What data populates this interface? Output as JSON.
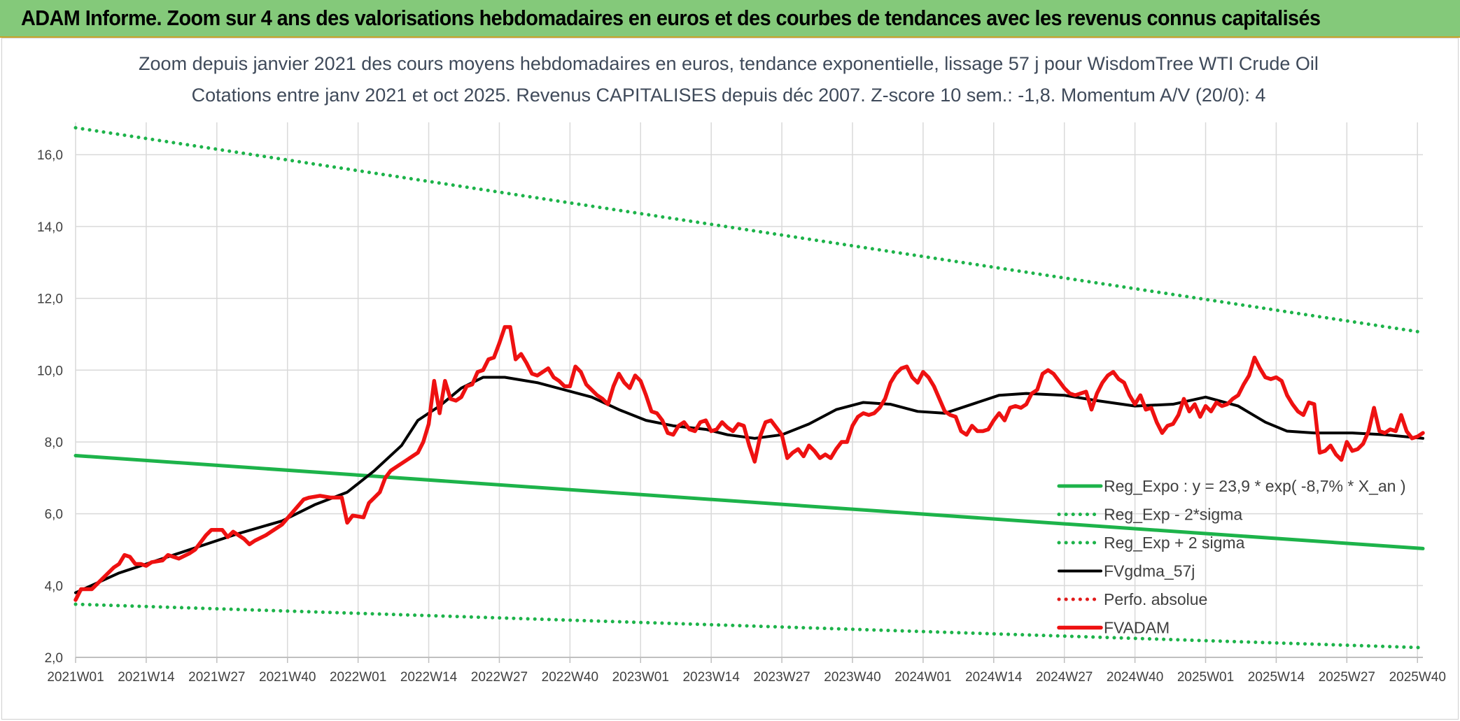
{
  "banner": {
    "title": "ADAM Informe. Zoom sur 4 ans des valorisations hebdomadaires en euros et des courbes de tendances avec les revenus connus capitalisés"
  },
  "chart_data": {
    "type": "line",
    "title": "Zoom depuis janvier 2021 des cours moyens hebdomadaires en euros, tendance exponentielle, lissage 57 j pour WisdomTree WTI Crude Oil",
    "subtitle": "Cotations entre janv 2021 et oct 2025. Revenus CAPITALISES depuis déc 2007. Z-score 10 sem.: -1,8. Momentum A/V (20/0): 4",
    "ylim": [
      2.0,
      16.9
    ],
    "yticks": [
      "2,0",
      "4,0",
      "6,0",
      "8,0",
      "10,0",
      "12,0",
      "14,0",
      "16,0"
    ],
    "ytick_values": [
      2,
      4,
      6,
      8,
      10,
      12,
      14,
      16
    ],
    "xticks": [
      "2021W01",
      "2021W14",
      "2021W27",
      "2021W40",
      "2022W01",
      "2022W14",
      "2022W27",
      "2022W40",
      "2023W01",
      "2023W14",
      "2023W27",
      "2023W40",
      "2024W01",
      "2024W14",
      "2024W27",
      "2024W40",
      "2025W01",
      "2025W14",
      "2025W27",
      "2025W40"
    ],
    "xtick_positions": [
      0,
      13,
      26,
      39,
      52,
      65,
      78,
      91,
      104,
      117,
      130,
      143,
      156,
      169,
      182,
      195,
      208,
      221,
      234,
      247
    ],
    "x_range": [
      0,
      248
    ],
    "grid": true,
    "legend_position": "right",
    "series": [
      {
        "name": "Reg_Expo : y = 23,9 * exp( -8,7% *  X_an )",
        "style": "solid-thick",
        "color": "#1db34a",
        "points": [
          [
            0,
            7.62
          ],
          [
            248,
            5.03
          ]
        ]
      },
      {
        "name": "Reg_Exp - 2*sigma",
        "style": "dotted",
        "color": "#1db34a",
        "points": [
          [
            0,
            3.48
          ],
          [
            248,
            2.27
          ]
        ]
      },
      {
        "name": "Reg_Exp + 2 sigma",
        "style": "dotted",
        "color": "#1db34a",
        "points": [
          [
            0,
            16.75
          ],
          [
            248,
            11.05
          ]
        ]
      },
      {
        "name": "FVgdma_57j",
        "style": "solid",
        "color": "#000000",
        "points": [
          [
            0,
            3.8
          ],
          [
            8,
            4.35
          ],
          [
            14,
            4.65
          ],
          [
            22,
            5.05
          ],
          [
            30,
            5.45
          ],
          [
            38,
            5.8
          ],
          [
            44,
            6.25
          ],
          [
            50,
            6.6
          ],
          [
            55,
            7.2
          ],
          [
            60,
            7.9
          ],
          [
            63,
            8.6
          ],
          [
            67,
            9.0
          ],
          [
            71,
            9.5
          ],
          [
            75,
            9.8
          ],
          [
            79,
            9.8
          ],
          [
            85,
            9.65
          ],
          [
            90,
            9.45
          ],
          [
            95,
            9.25
          ],
          [
            100,
            8.9
          ],
          [
            105,
            8.6
          ],
          [
            110,
            8.45
          ],
          [
            116,
            8.35
          ],
          [
            120,
            8.2
          ],
          [
            125,
            8.1
          ],
          [
            130,
            8.2
          ],
          [
            135,
            8.5
          ],
          [
            140,
            8.9
          ],
          [
            145,
            9.1
          ],
          [
            150,
            9.05
          ],
          [
            155,
            8.85
          ],
          [
            160,
            8.8
          ],
          [
            165,
            9.05
          ],
          [
            170,
            9.3
          ],
          [
            175,
            9.35
          ],
          [
            182,
            9.3
          ],
          [
            188,
            9.15
          ],
          [
            195,
            9.0
          ],
          [
            202,
            9.05
          ],
          [
            208,
            9.25
          ],
          [
            214,
            9.0
          ],
          [
            219,
            8.55
          ],
          [
            223,
            8.3
          ],
          [
            228,
            8.25
          ],
          [
            235,
            8.25
          ],
          [
            241,
            8.2
          ],
          [
            248,
            8.1
          ]
        ]
      },
      {
        "name": "Perfo. absolue",
        "style": "dotted",
        "color": "#e11b1b",
        "points": []
      },
      {
        "name": "FVADAM",
        "style": "solid-thick",
        "color": "#ee1111",
        "points": [
          [
            0,
            3.6
          ],
          [
            1,
            3.9
          ],
          [
            3,
            3.9
          ],
          [
            5,
            4.2
          ],
          [
            7,
            4.5
          ],
          [
            8,
            4.6
          ],
          [
            9,
            4.85
          ],
          [
            10,
            4.8
          ],
          [
            11,
            4.6
          ],
          [
            12,
            4.6
          ],
          [
            13,
            4.55
          ],
          [
            14,
            4.65
          ],
          [
            16,
            4.7
          ],
          [
            17,
            4.85
          ],
          [
            18,
            4.8
          ],
          [
            19,
            4.75
          ],
          [
            21,
            4.9
          ],
          [
            22,
            5.0
          ],
          [
            24,
            5.4
          ],
          [
            25,
            5.55
          ],
          [
            27,
            5.55
          ],
          [
            28,
            5.35
          ],
          [
            29,
            5.5
          ],
          [
            31,
            5.3
          ],
          [
            32,
            5.15
          ],
          [
            33,
            5.25
          ],
          [
            35,
            5.4
          ],
          [
            37,
            5.6
          ],
          [
            38,
            5.7
          ],
          [
            40,
            6.05
          ],
          [
            42,
            6.4
          ],
          [
            43,
            6.45
          ],
          [
            45,
            6.5
          ],
          [
            47,
            6.45
          ],
          [
            49,
            6.45
          ],
          [
            50,
            5.75
          ],
          [
            51,
            5.95
          ],
          [
            53,
            5.9
          ],
          [
            54,
            6.3
          ],
          [
            55,
            6.45
          ],
          [
            56,
            6.6
          ],
          [
            57,
            7.0
          ],
          [
            58,
            7.2
          ],
          [
            59,
            7.3
          ],
          [
            60,
            7.4
          ],
          [
            61,
            7.5
          ],
          [
            62,
            7.6
          ],
          [
            63,
            7.7
          ],
          [
            64,
            8.0
          ],
          [
            65,
            8.5
          ],
          [
            66,
            9.7
          ],
          [
            67,
            8.8
          ],
          [
            68,
            9.7
          ],
          [
            69,
            9.2
          ],
          [
            70,
            9.15
          ],
          [
            71,
            9.25
          ],
          [
            72,
            9.55
          ],
          [
            73,
            9.6
          ],
          [
            74,
            9.95
          ],
          [
            75,
            10.0
          ],
          [
            76,
            10.3
          ],
          [
            77,
            10.35
          ],
          [
            78,
            10.75
          ],
          [
            79,
            11.2
          ],
          [
            80,
            11.2
          ],
          [
            81,
            10.3
          ],
          [
            82,
            10.45
          ],
          [
            83,
            10.2
          ],
          [
            84,
            9.9
          ],
          [
            85,
            9.85
          ],
          [
            86,
            9.95
          ],
          [
            87,
            10.05
          ],
          [
            88,
            9.8
          ],
          [
            89,
            9.7
          ],
          [
            90,
            9.55
          ],
          [
            91,
            9.55
          ],
          [
            92,
            10.1
          ],
          [
            93,
            9.95
          ],
          [
            94,
            9.6
          ],
          [
            95,
            9.45
          ],
          [
            96,
            9.3
          ],
          [
            97,
            9.2
          ],
          [
            98,
            9.05
          ],
          [
            99,
            9.55
          ],
          [
            100,
            9.9
          ],
          [
            101,
            9.65
          ],
          [
            102,
            9.5
          ],
          [
            103,
            9.85
          ],
          [
            104,
            9.7
          ],
          [
            105,
            9.3
          ],
          [
            106,
            8.85
          ],
          [
            107,
            8.8
          ],
          [
            108,
            8.6
          ],
          [
            109,
            8.25
          ],
          [
            110,
            8.2
          ],
          [
            111,
            8.45
          ],
          [
            112,
            8.55
          ],
          [
            113,
            8.35
          ],
          [
            114,
            8.3
          ],
          [
            115,
            8.55
          ],
          [
            116,
            8.6
          ],
          [
            117,
            8.3
          ],
          [
            118,
            8.35
          ],
          [
            119,
            8.55
          ],
          [
            120,
            8.4
          ],
          [
            121,
            8.3
          ],
          [
            122,
            8.5
          ],
          [
            123,
            8.45
          ],
          [
            124,
            7.9
          ],
          [
            125,
            7.45
          ],
          [
            126,
            8.15
          ],
          [
            127,
            8.55
          ],
          [
            128,
            8.6
          ],
          [
            129,
            8.4
          ],
          [
            130,
            8.2
          ],
          [
            131,
            7.55
          ],
          [
            132,
            7.7
          ],
          [
            133,
            7.8
          ],
          [
            134,
            7.6
          ],
          [
            135,
            7.9
          ],
          [
            136,
            7.75
          ],
          [
            137,
            7.55
          ],
          [
            138,
            7.65
          ],
          [
            139,
            7.55
          ],
          [
            140,
            7.8
          ],
          [
            141,
            8.0
          ],
          [
            142,
            8.0
          ],
          [
            143,
            8.45
          ],
          [
            144,
            8.7
          ],
          [
            145,
            8.8
          ],
          [
            146,
            8.75
          ],
          [
            147,
            8.8
          ],
          [
            148,
            8.95
          ],
          [
            149,
            9.2
          ],
          [
            150,
            9.65
          ],
          [
            151,
            9.9
          ],
          [
            152,
            10.05
          ],
          [
            153,
            10.1
          ],
          [
            154,
            9.8
          ],
          [
            155,
            9.65
          ],
          [
            156,
            9.95
          ],
          [
            157,
            9.8
          ],
          [
            158,
            9.55
          ],
          [
            159,
            9.2
          ],
          [
            160,
            8.85
          ],
          [
            161,
            8.75
          ],
          [
            162,
            8.7
          ],
          [
            163,
            8.3
          ],
          [
            164,
            8.2
          ],
          [
            165,
            8.45
          ],
          [
            166,
            8.3
          ],
          [
            167,
            8.3
          ],
          [
            168,
            8.35
          ],
          [
            169,
            8.6
          ],
          [
            170,
            8.8
          ],
          [
            171,
            8.6
          ],
          [
            172,
            8.95
          ],
          [
            173,
            9.0
          ],
          [
            174,
            8.95
          ],
          [
            175,
            9.05
          ],
          [
            176,
            9.35
          ],
          [
            177,
            9.45
          ],
          [
            178,
            9.9
          ],
          [
            179,
            10.0
          ],
          [
            180,
            9.9
          ],
          [
            181,
            9.7
          ],
          [
            182,
            9.5
          ],
          [
            183,
            9.35
          ],
          [
            184,
            9.3
          ],
          [
            185,
            9.35
          ],
          [
            186,
            9.4
          ],
          [
            187,
            8.9
          ],
          [
            188,
            9.35
          ],
          [
            189,
            9.65
          ],
          [
            190,
            9.85
          ],
          [
            191,
            9.95
          ],
          [
            192,
            9.75
          ],
          [
            193,
            9.65
          ],
          [
            194,
            9.3
          ],
          [
            195,
            9.05
          ],
          [
            196,
            9.3
          ],
          [
            197,
            8.9
          ],
          [
            198,
            8.95
          ],
          [
            199,
            8.55
          ],
          [
            200,
            8.25
          ],
          [
            201,
            8.45
          ],
          [
            202,
            8.5
          ],
          [
            203,
            8.75
          ],
          [
            204,
            9.2
          ],
          [
            205,
            8.85
          ],
          [
            206,
            9.05
          ],
          [
            207,
            8.7
          ],
          [
            208,
            9.0
          ],
          [
            209,
            8.85
          ],
          [
            210,
            9.1
          ],
          [
            211,
            9.0
          ],
          [
            212,
            9.05
          ],
          [
            213,
            9.2
          ],
          [
            214,
            9.3
          ],
          [
            215,
            9.6
          ],
          [
            216,
            9.85
          ],
          [
            217,
            10.35
          ],
          [
            218,
            10.05
          ],
          [
            219,
            9.8
          ],
          [
            220,
            9.75
          ],
          [
            221,
            9.8
          ],
          [
            222,
            9.7
          ],
          [
            223,
            9.3
          ],
          [
            224,
            9.05
          ],
          [
            225,
            8.85
          ],
          [
            226,
            8.75
          ],
          [
            227,
            9.1
          ],
          [
            228,
            9.05
          ],
          [
            229,
            7.7
          ],
          [
            230,
            7.75
          ],
          [
            231,
            7.9
          ],
          [
            232,
            7.65
          ],
          [
            233,
            7.5
          ],
          [
            234,
            8.0
          ],
          [
            235,
            7.75
          ],
          [
            236,
            7.8
          ],
          [
            237,
            7.95
          ],
          [
            238,
            8.3
          ],
          [
            239,
            8.95
          ],
          [
            240,
            8.3
          ],
          [
            241,
            8.25
          ],
          [
            242,
            8.35
          ],
          [
            243,
            8.3
          ],
          [
            244,
            8.75
          ],
          [
            245,
            8.3
          ],
          [
            246,
            8.1
          ],
          [
            247,
            8.15
          ],
          [
            248,
            8.25
          ]
        ]
      }
    ]
  },
  "colors": {
    "banner_bg": "#84c97a",
    "grid": "#d9d9d9",
    "axis": "#bfbfbf"
  }
}
